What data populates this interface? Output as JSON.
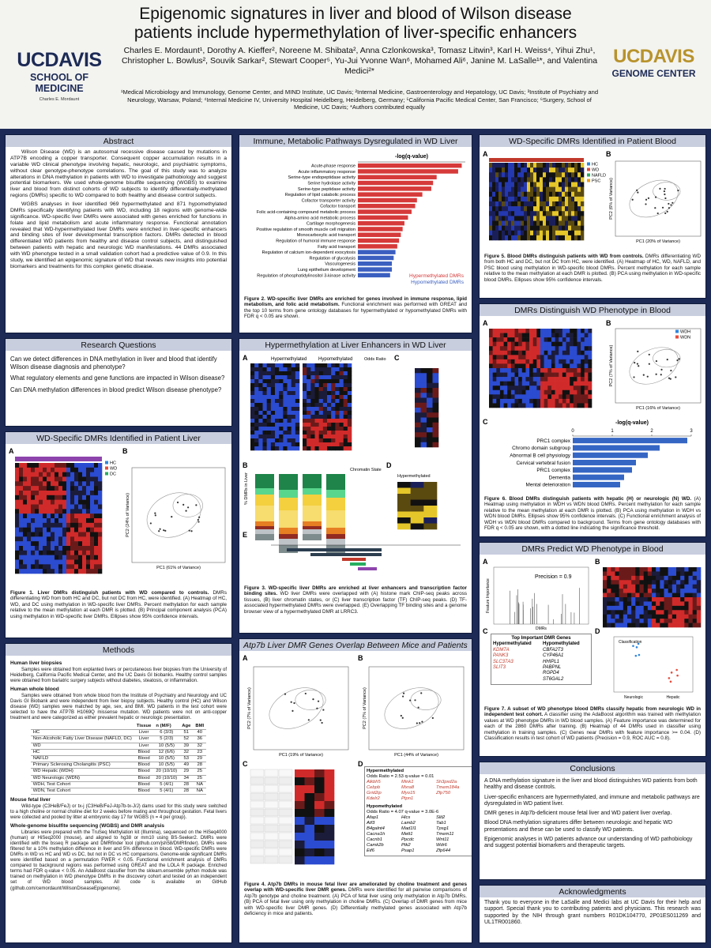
{
  "header": {
    "title": "Epigenomic signatures in liver and blood of Wilson disease patients include hypermethylation of liver-specific enhancers",
    "authors": "Charles E. Mordaunt¹, Dorothy A. Kieffer², Noreene M. Shibata², Anna Czlonkowska³, Tomasz Litwin³, Karl H. Weiss⁴, Yihui Zhu¹, Christopher L. Bowlus², Souvik Sarkar², Stewart Cooper⁵, Yu-Jui Yvonne Wan⁶, Mohamed Ali⁶, Janine M. LaSalle¹*, and Valentina Medici²*",
    "affiliations": "¹Medical Microbiology and Immunology, Genome Center, and MIND Institute, UC Davis; ²Internal Medicine, Gastroenterology and Hepatology, UC Davis; ³Institute of Psychiatry and Neurology, Warsaw, Poland; ⁴Internal Medicine IV, University Hospital Heidelberg, Heidelberg, Germany; ⁵California Pacific Medical Center, San Francisco; ⁶Surgery, School of Medicine, UC Davis; *Authors contributed equally",
    "left_logo": {
      "name": "UCDAVIS",
      "unit": "SCHOOL OF MEDICINE",
      "presenter": "Charles E. Mordaunt"
    },
    "right_logo": {
      "name": "UCDAVIS",
      "unit": "GENOME CENTER"
    }
  },
  "abstract": {
    "heading": "Abstract",
    "paragraphs": [
      "Wilson Disease (WD) is an autosomal recessive disease caused by mutations in ATP7B encoding a copper transporter. Consequent copper accumulation results in a variable WD clinical phenotype involving hepatic, neurologic, and psychiatric symptoms, without clear genotype-phenotype correlations. The goal of this study was to analyze alterations in DNA methylation in patients with WD to investigate pathobiology and suggest potential biomarkers. We used whole-genome bisulfite sequencing (WGBS) to examine liver and blood from distinct cohorts of WD subjects to identify differentially-methylated regions (DMRs) specific to WD compared to both healthy and disease control subjects.",
      "WGBS analyses in liver identified 969 hypermethylated and 871 hypomethylated DMRs specifically identifying patients with WD, including 18 regions with genome-wide significance. WD-specific liver DMRs were associated with genes enriched for functions in folate and lipid metabolism and acute inflammatory response. Functional annotation revealed that WD-hypermethylated liver DMRs were enriched in liver-specific enhancers and binding sites of liver developmental transcription factors. DMRs detected in blood differentiated WD patients from healthy and disease control subjects, and distinguished between patients with hepatic and neurologic WD manifestations. 44 DMRs associated with WD phenotype tested in a small validation cohort had a predictive value of 0.9. In this study, we identified an epigenomic signature of WD that reveals new insights into potential biomarkers and treatments for this complex genetic disease."
    ]
  },
  "research_questions": {
    "heading": "Research Questions",
    "items": [
      "Can we detect differences in DNA methylation in liver and blood that identify Wilson disease diagnosis and phenotype?",
      "What regulatory elements and gene functions are impacted in Wilson disease?",
      "Can DNA methylation differences in blood predict Wilson disease phenotype?"
    ]
  },
  "liver_dmrs": {
    "heading": "WD-Specific DMRs Identified in Patient Liver",
    "panels": [
      "A",
      "B"
    ],
    "legend": [
      "HC",
      "WD",
      "DC"
    ],
    "x_label": "PC1 (61% of Variance)",
    "y_label": "PC2 (24% of Variance)",
    "caption_title": "Figure 1. Liver DMRs distinguish patients with WD compared to controls.",
    "caption": "DMRs differentiating WD from both HC and DC, but not DC from HC, were identified. (A) Heatmap of HC, WD, and DC using methylation in WD-specific liver DMRs. Percent methylation for each sample relative to the mean methylation at each DMR is plotted. (B) Principal component analysis (PCA) using methylation in WD-specific liver DMRs. Ellipses show 95% confidence intervals."
  },
  "methods": {
    "heading": "Methods",
    "liver_title": "Human liver biopsies",
    "liver_text": "Samples were obtained from explanted livers or percutaneous liver biopsies from the University of Heidelberg, California Pacific Medical Center, and the UC Davis GI biobanks. Healthy control samples were obtained from bariatric surgery subjects without diabetes, steatosis, or inflammation.",
    "blood_title": "Human whole blood",
    "blood_text": "Samples were obtained from whole blood from the Institute of Psychiatry and Neurology and UC Davis GI Biobank and were independent from liver biopsy subjects. Healthy control (HC) and Wilson disease (WD) samples were matched by age, sex, and BMI. WD patients in the test cohort were selected to have the ATP7B H1069Q missense mutation. WD patients were not on anti-copper treatment and were categorized as either prevalent hepatic or neurologic presentation.",
    "table": {
      "header": [
        "Tissue",
        "n (M/F)",
        "Age",
        "BMI"
      ],
      "rows": [
        [
          "HC",
          "Liver",
          "6 (3/3)",
          "51",
          "40"
        ],
        [
          "Non-Alcoholic Fatty Liver Disease (NAFLD, DC)",
          "Liver",
          "5 (2/3)",
          "52",
          "36"
        ],
        [
          "WD",
          "Liver",
          "10 (5/5)",
          "39",
          "32"
        ],
        [
          "HC",
          "Blood",
          "12 (6/6)",
          "32",
          "23"
        ],
        [
          "NAFLD",
          "Blood",
          "10 (5/5)",
          "53",
          "29"
        ],
        [
          "Primary Sclerosing Cholangitis (PSC)",
          "Blood",
          "10 (5/5)",
          "49",
          "28"
        ],
        [
          "WD Hepatic (WDH)",
          "Blood",
          "20 (10/10)",
          "29",
          "25"
        ],
        [
          "WD Neurologic (WDN)",
          "Blood",
          "20 (10/10)",
          "34",
          "25"
        ],
        [
          "WDH, Test Cohort",
          "Blood",
          "5 (4/1)",
          "28",
          "NA"
        ],
        [
          "WDN, Test Cohort",
          "Blood",
          "5 (4/1)",
          "28",
          "NA"
        ]
      ]
    },
    "mouse_title": "Mouse fetal liver",
    "mouse_text": "Wild-type (C3HeB/FeJ) or tx-j (C3HeB/FeJ-Atp7b-tx-J/J) dams used for this study were switched to a high choline or normal choline diet for 2 weeks before mating and throughout gestation. Fetal livers were collected and pooled by litter at embryonic day 17 for WGBS (n = 4 per group).",
    "wgbs_title": "Whole-genome bisulfite sequencing (WGBS) and DMR analysis",
    "wgbs_text": "Libraries were prepared with the TruSeq Methylation kit (Illumina), sequenced on the HiSeq4000 (human) or HiSeq2000 (mouse), and aligned to hg38 or mm10 using BS-Seeker2. DMRs were identified with the bsseq R package and DMRfinder tool (github.com/jsh58/DMRfinder). DMRs were filtered for a 10% methylation difference in liver and 5% difference in blood. WD-specific DMRs were DMRs in WD vs HC and WD vs DC, but not in DC vs HC comparisons. Genome-wide significant DMRs were identified based on a permutation FWER < 0.05. Functional enrichment analysis of DMRs compared to background regions was performed using GREAT and the LOLA R package. Enriched terms had FDR q-value < 0.05. An AdaBoost classifier from the sklearn.ensemble python module was trained on methylation in WD phenotype DMRs in the discovery cohort and tested on an independent set of WD blood samples. All code is available on GitHub (github.com/cemordaunt/WilsonDiseaseEpigenome)."
  },
  "pathways": {
    "heading": "Immune, Metabolic Pathways Dysregulated in WD Liver",
    "caption_title": "Figure 2. WD-specific liver DMRs are enriched for genes involved in immune response, lipid metabolism, and folic acid metabolism.",
    "caption": "Functional enrichment was performed with GREAT and the top 10 terms from gene ontology databases for hypermethylated or hypomethylated DMRs with FDR q < 0.05 are shown."
  },
  "enhancers": {
    "heading": "Hypermethylation at Liver Enhancers in WD Liver",
    "panels": [
      "A",
      "B",
      "C",
      "D",
      "E"
    ],
    "labels": [
      "Hypermethylated",
      "Hypomethylated",
      "Odds Ratio",
      "Chromatin State",
      "% DMRs in Liver",
      "Hypermethylated"
    ],
    "caption_title": "Figure 3. WD-specific liver DMRs are enriched at liver enhancers and transcription factor binding sites.",
    "caption": "WD liver DMRs were overlapped with (A) histone mark ChIP-seq peaks across tissues, (B) liver chromatin states, or (C) liver transcription factor (TF) ChIP-seq peaks. (D) TF-associated hypermethylated DMRs were overlapped. (E) Overlapping TF binding sites and a genome browser view of a hypermethylated DMR at LRRC3."
  },
  "atp7b": {
    "heading": "Atp7b Liver DMR Genes Overlap Between Mice and Patients",
    "panels": [
      "A",
      "B",
      "C",
      "D"
    ],
    "x_labels": [
      "PC1 (19% of Variance)",
      "PC1 (44% of Variance)"
    ],
    "y_labels": [
      "PC2 (7% of Variance)",
      "PC2 (7% of Variance)"
    ],
    "overlap": {
      "hyper_heading": "Hypermethylated",
      "hyper_stats": "Odds Ratio = 2.53   q-value = 0.01",
      "hyper_genes": [
        "Alkbh5",
        "Mink1",
        "Sh3pxd2a",
        "Cebpb",
        "Mxra8",
        "Tmem184a",
        "Grid2ip",
        "Myo15",
        "Zfp750",
        "Kdelr2",
        "Ptpn1"
      ],
      "hypo_heading": "Hypomethylated",
      "hypo_stats": "Odds Ratio = 4.07   q-value = 3.0E-6",
      "hypo_genes": [
        "Afap1",
        "Hlcs",
        "Slit2",
        "Atf3",
        "Lamb2",
        "Tab1",
        "B4galnt4",
        "Mad1l1",
        "Tpsg1",
        "Cacna1h",
        "Mett1",
        "Tmem11",
        "Cacnb1",
        "Ppcdc",
        "Wnt11",
        "Camk2b",
        "Ptk2",
        "Wdr6",
        "Eif6",
        "Psap1",
        "Zfp644"
      ]
    },
    "caption_title": "Figure 4. Atp7b DMRs in mouse fetal liver are ameliorated by choline treatment and genes overlap with WD-specific liver DMR genes.",
    "caption": "DMRs were identified for all pairwise comparisons of Atp7b genotype and choline treatment. (A) PCA of fetal liver using only methylation in Atp7b DMRs. (B) PCA of fetal liver using only methylation in choline DMRs. (C) Overlap of DMR genes from mice with WD-specific liver DMR genes. (D) Differentially methylated genes associated with Atp7b deficiency in mice and patients."
  },
  "blood_dmrs": {
    "heading": "WD-Specific DMRs Identified in Patient Blood",
    "panels": [
      "A",
      "B"
    ],
    "legend": [
      "HC",
      "WD",
      "NAFLD",
      "PSC"
    ],
    "x_label": "PC1 (20% of Variance)",
    "y_label": "PC2 (6% of Variance)",
    "caption_title": "Figure 5. Blood DMRs distinguish patients with WD from controls.",
    "caption": "DMRs differentiating WD from both HC and DC, but not DC from HC, were identified. (A) Heatmap of HC, WD, NAFLD, and PSC blood using methylation in WD-specific blood DMRs. Percent methylation for each sample relative to the mean methylation at each DMR is plotted. (B) PCA using methylation in WD-specific blood DMRs. Ellipses show 95% confidence intervals."
  },
  "phenotype": {
    "heading": "DMRs Distinguish WD Phenotype in Blood",
    "panels": [
      "A",
      "B",
      "C"
    ],
    "legend": [
      "WDH",
      "WDN"
    ],
    "x_label": "PC1 (16% of Variance)",
    "y_label": "PC2 (7% of Variance)",
    "caption_title": "Figure 6. Blood DMRs distinguish patients with hepatic (H) or neurologic (N) WD.",
    "caption": "(A) Heatmap using methylation in WDH vs WDN blood DMRs. Percent methylation for each sample relative to the mean methylation at each DMR is plotted. (B) PCA using methylation in WDH vs WDN blood DMRs. Ellipses show 95% confidence intervals. (C) Functional enrichment analysis of WDH vs WDN blood DMRs compared to background. Terms from gene ontology databases with FDR q < 0.05 are shown, with a dotted line indicating the significance threshold."
  },
  "predict": {
    "heading": "DMRs Predict WD Phenotype in Blood",
    "panels": [
      "A",
      "B",
      "C",
      "D"
    ],
    "annotation": "Precision = 0.9",
    "feature_label": "Feature Importance",
    "dmr_label": "DMRs",
    "classes": [
      "Classification",
      "Neurologic",
      "Hepatic"
    ],
    "genes": {
      "title": "Top Important DMR Genes",
      "hyper_heading": "Hypermethylated",
      "hyper": [
        "KDM7A",
        "PANK3",
        "SLC37A3",
        "SLIT3"
      ],
      "hypo_heading": "Hypomethylated",
      "hypo": [
        "CBFA2T3",
        "CYP46A1",
        "HHIPL1",
        "PABPNL",
        "RGPD4",
        "ST6GAL2"
      ]
    },
    "caption_title": "Figure 7. A subset of WD phenotype blood DMRs classify hepatic from neurologic WD in independent test cohort.",
    "caption": "A classifier using the AdaBoost algorithm was trained with methylation values at WD phenotype DMRs in WD blood samples. (A) Feature importance was determined for each of the 2860 DMRs after training. (B) Heatmap of 44 DMRs used in classifier using methylation in training samples. (C) Genes near DMRs with feature importance >= 0.04. (D) Classification results in test cohort of WD patients (Precision = 0.9, ROC AUC = 0.8)."
  },
  "conclusions": {
    "heading": "Conclusions",
    "items": [
      "A DNA methylation signature in the liver and blood distinguishes WD patients from both healthy and disease controls.",
      "Liver-specific enhancers are hypermethylated, and immune and metabolic pathways are dysregulated in WD patient liver.",
      "DMR genes in Atp7b-deficient mouse fetal liver and WD patient liver overlap.",
      "Blood DNA methylation signatures differ between neurologic and hepatic WD presentations and these can be used to classify WD patients.",
      "Epigenomic analyses in WD patients advance our understanding of WD pathobiology and suggest potential biomarkers and therapeutic targets."
    ]
  },
  "acknowledgments": {
    "heading": "Acknowledgments",
    "text": "Thank you to everyone in the LaSalle and Medici labs at UC Davis for their help and support. Special thank you to contributing patients and physicians. This research was supported by the NIH through grant numbers R01DK104770, 2P01ES011269 and UL1TR001860."
  },
  "chart_data": [
    {
      "type": "bar",
      "orientation": "horizontal",
      "x_label": "-log(q-value)",
      "categories": [
        "Acute-phase response",
        "Acute inflammatory response",
        "Serine-type endopeptidase activity",
        "Serine hydrolase activity",
        "Serine-type peptidase activity",
        "Regulation of lipid catabolic process",
        "Cofactor transporter activity",
        "Cofactor transport",
        "Folic acid-containing compound metabolic process",
        "Alpha-amino acid metabolic process",
        "Cartilage morphogenesis",
        "Positive regulation of smooth muscle cell migration",
        "Monocarboxylic acid transport",
        "Regulation of humoral immune response",
        "Fatty acid transport",
        "Regulation of calcium ion-dependent exocytosis",
        "Regulation of glycolysis",
        "Vasculogenesis",
        "Lung epithelium development",
        "Regulation of phosphatidylinositol 3-kinase activity"
      ],
      "series": [
        {
          "name": "Hypermethylated DMRs",
          "color": "#d63a3a",
          "values": [
            5.8,
            5.6,
            4.4,
            4.2,
            4.1,
            3.6,
            3.3,
            3.2,
            3.0,
            2.8,
            2.6,
            2.5,
            2.4,
            2.3,
            2.2,
            null,
            null,
            null,
            null,
            null
          ]
        },
        {
          "name": "Hypomethylated DMRs",
          "color": "#3b5fc0",
          "values": [
            null,
            null,
            null,
            null,
            null,
            null,
            null,
            null,
            null,
            null,
            null,
            null,
            null,
            null,
            null,
            2.1,
            2.0,
            1.9,
            1.9,
            1.8
          ]
        }
      ],
      "xlim": [
        0,
        6
      ]
    },
    {
      "type": "bar",
      "orientation": "horizontal",
      "x_label": "-log(q-value)",
      "categories": [
        "PRC1 complex",
        "Chromo domain subgroup",
        "Abnormal B cell physiology",
        "Cervical vertebral fusion",
        "PRC1 complex",
        "Dementia",
        "Mental deterioration"
      ],
      "values": [
        2.9,
        2.2,
        1.9,
        1.6,
        1.5,
        1.3,
        1.2
      ],
      "color": "#3566c4",
      "xlim": [
        0,
        3
      ],
      "xticks": [
        0,
        1,
        2,
        3
      ]
    }
  ]
}
